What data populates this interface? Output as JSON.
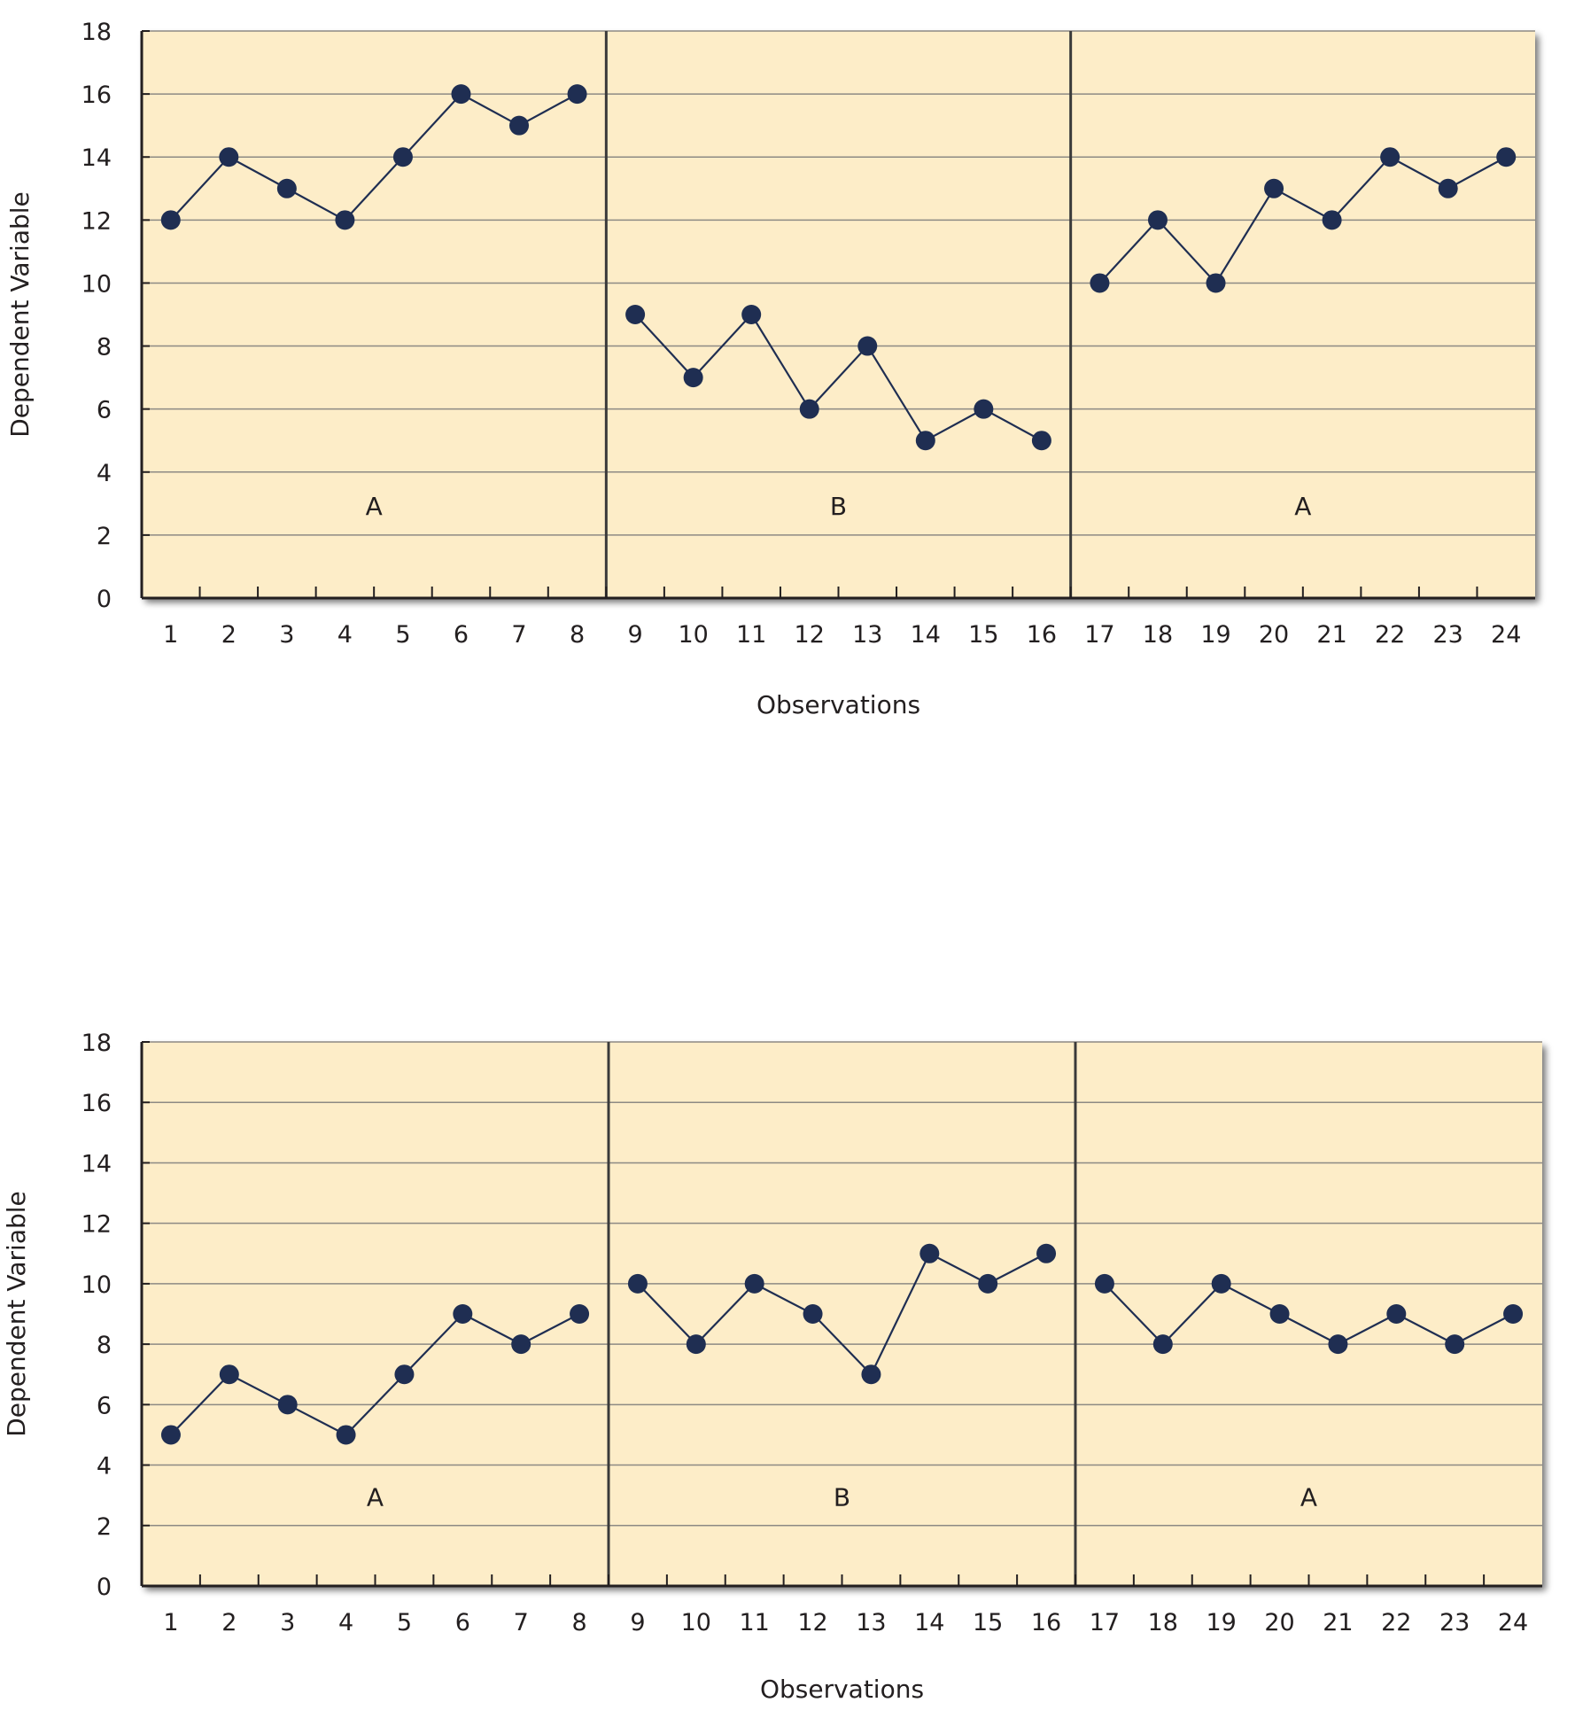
{
  "chart_data": [
    {
      "type": "line",
      "title": "",
      "xlabel": "Observations",
      "ylabel": "Dependent Variable",
      "ylim": [
        0,
        18
      ],
      "yticks": [
        "0",
        "2",
        "4",
        "6",
        "8",
        "10",
        "12",
        "14",
        "16",
        "18"
      ],
      "categories": [
        "1",
        "2",
        "3",
        "4",
        "5",
        "6",
        "7",
        "8",
        "9",
        "10",
        "11",
        "12",
        "13",
        "14",
        "15",
        "16",
        "17",
        "18",
        "19",
        "20",
        "21",
        "22",
        "23",
        "24"
      ],
      "phases": [
        {
          "label": "A",
          "start": 1,
          "end": 8
        },
        {
          "label": "B",
          "start": 9,
          "end": 16
        },
        {
          "label": "A",
          "start": 17,
          "end": 24
        }
      ],
      "series": [
        {
          "values": [
            12,
            14,
            13,
            12,
            14,
            16,
            15,
            16,
            9,
            7,
            9,
            6,
            8,
            5,
            6,
            5,
            10,
            12,
            10,
            13,
            12,
            14,
            13,
            14
          ]
        }
      ],
      "grid": true,
      "background_color": "#fdedc8",
      "marker_color": "#1f2e52",
      "line_color": "#1f2e52"
    },
    {
      "type": "line",
      "title": "",
      "xlabel": "Observations",
      "ylabel": "Dependent Variable",
      "ylim": [
        0,
        18
      ],
      "yticks": [
        "0",
        "2",
        "4",
        "6",
        "8",
        "10",
        "12",
        "14",
        "16",
        "18"
      ],
      "categories": [
        "1",
        "2",
        "3",
        "4",
        "5",
        "6",
        "7",
        "8",
        "9",
        "10",
        "11",
        "12",
        "13",
        "14",
        "15",
        "16",
        "17",
        "18",
        "19",
        "20",
        "21",
        "22",
        "23",
        "24"
      ],
      "phases": [
        {
          "label": "A",
          "start": 1,
          "end": 8
        },
        {
          "label": "B",
          "start": 9,
          "end": 16
        },
        {
          "label": "A",
          "start": 17,
          "end": 24
        }
      ],
      "series": [
        {
          "values": [
            5,
            7,
            6,
            5,
            7,
            9,
            8,
            9,
            10,
            8,
            10,
            9,
            7,
            11,
            10,
            11,
            10,
            8,
            10,
            9,
            8,
            9,
            8,
            9
          ]
        }
      ],
      "grid": true,
      "background_color": "#fdedc8",
      "marker_color": "#1f2e52",
      "line_color": "#1f2e52"
    }
  ]
}
